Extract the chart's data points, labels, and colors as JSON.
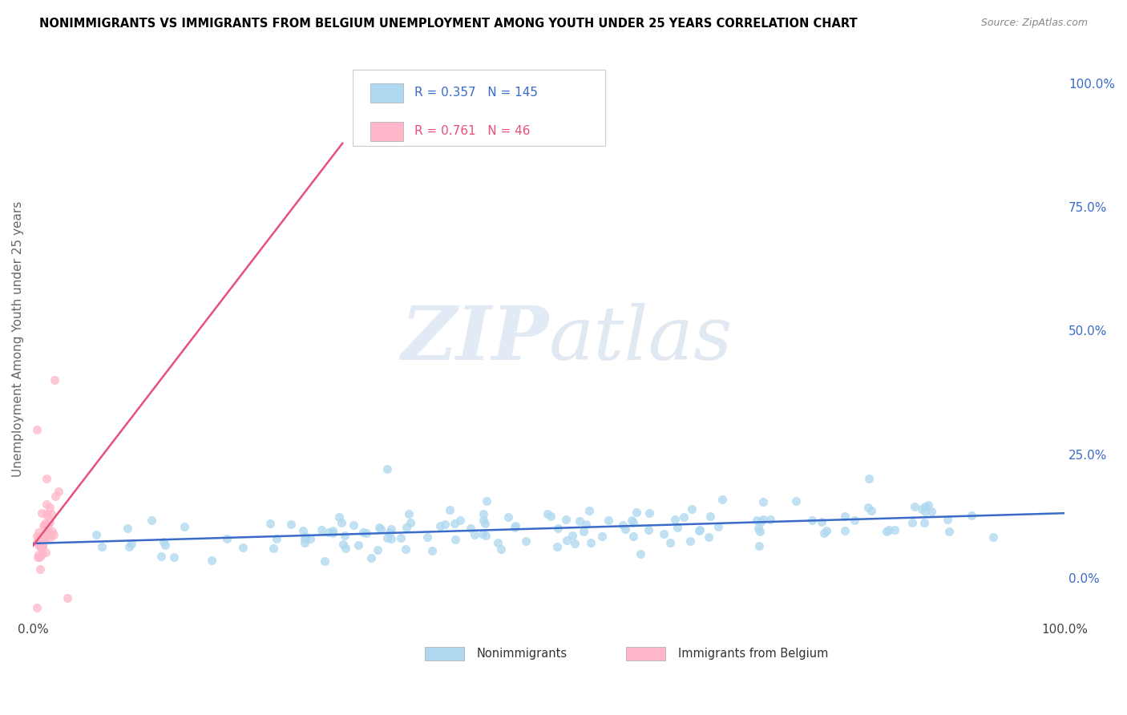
{
  "title": "NONIMMIGRANTS VS IMMIGRANTS FROM BELGIUM UNEMPLOYMENT AMONG YOUTH UNDER 25 YEARS CORRELATION CHART",
  "source": "Source: ZipAtlas.com",
  "ylabel": "Unemployment Among Youth under 25 years",
  "watermark_zip": "ZIP",
  "watermark_atlas": "atlas",
  "blue_R": 0.357,
  "blue_N": 145,
  "pink_R": 0.761,
  "pink_N": 46,
  "blue_color": "#add8f0",
  "pink_color": "#ffb6c8",
  "blue_line_color": "#3a6bc9",
  "pink_line_color": "#e8507a",
  "blue_legend_label": "Nonimmigrants",
  "pink_legend_label": "Immigrants from Belgium",
  "background_color": "#FFFFFF",
  "grid_color": "#d8d8d8",
  "title_color": "#000000",
  "axis_label_color": "#666666",
  "right_tick_color": "#3a6bc9",
  "xlim": [
    0.0,
    1.0
  ],
  "ylim": [
    -0.085,
    1.05
  ],
  "right_yticks": [
    0.0,
    0.25,
    0.5,
    0.75,
    1.0
  ],
  "right_yticklabels": [
    "0.0%",
    "25.0%",
    "50.0%",
    "75.0%",
    "100.0%"
  ],
  "xticks": [
    0.0,
    1.0
  ],
  "xticklabels": [
    "0.0%",
    "100.0%"
  ],
  "seed": 7
}
